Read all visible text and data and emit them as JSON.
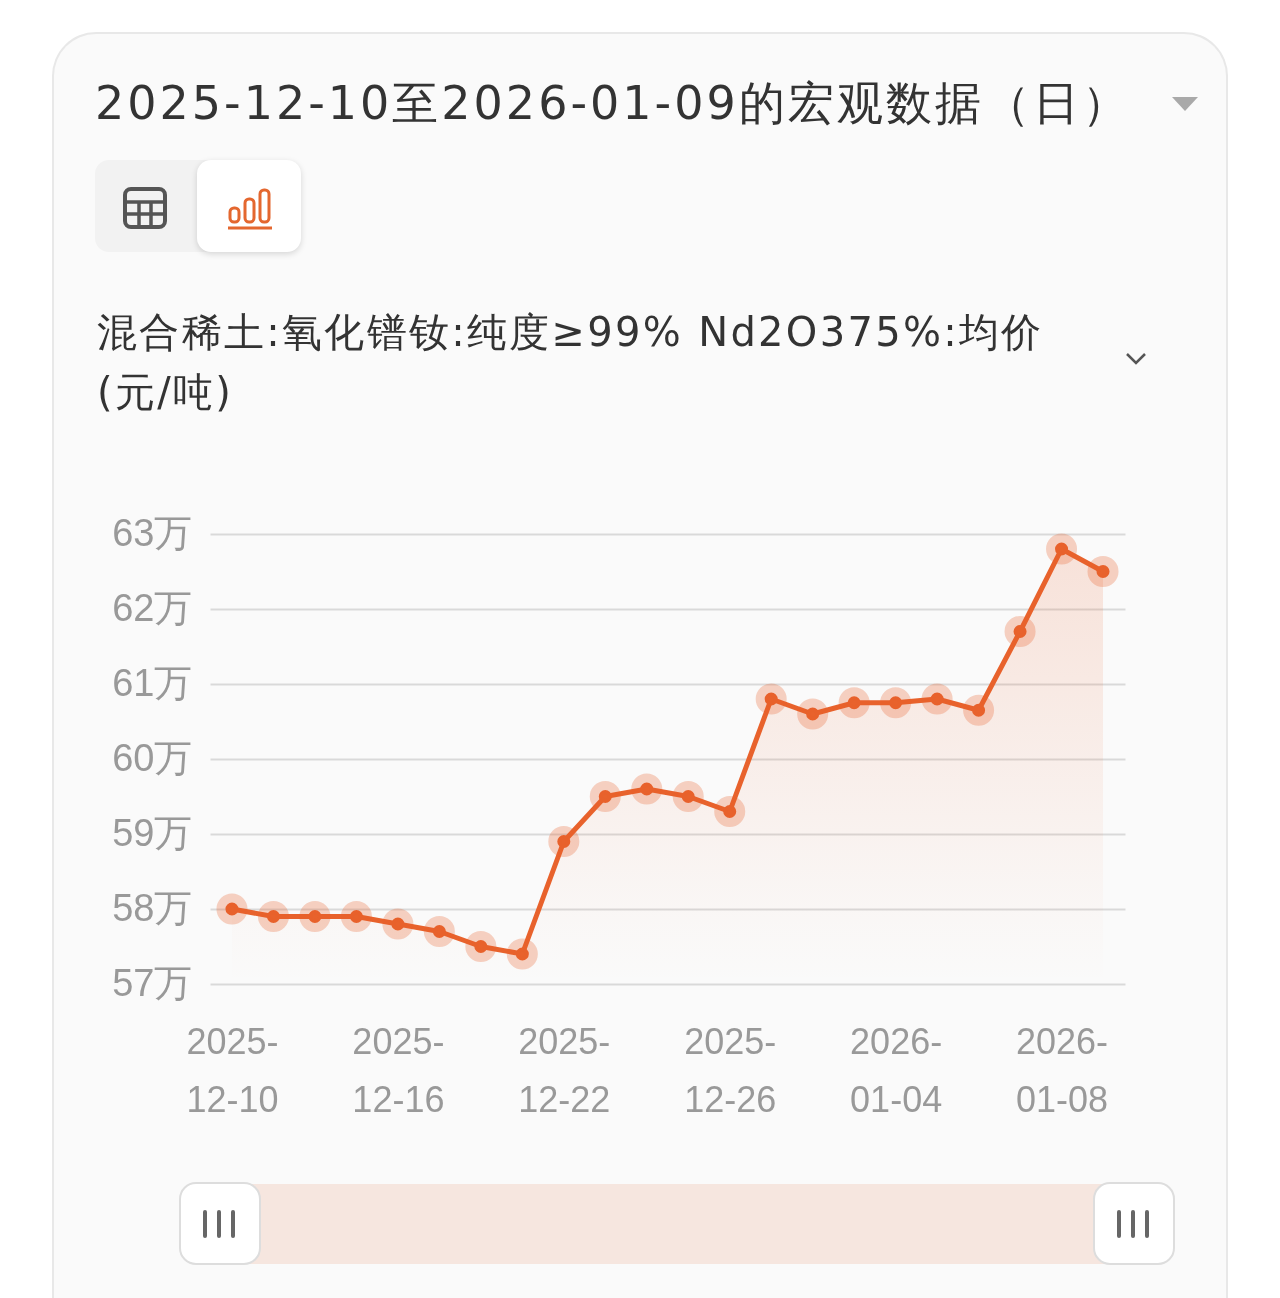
{
  "chart_data": {
    "type": "area",
    "title": "2025-12-10至2026-01-09的宏观数据（日）",
    "subtitle": "混合稀土:氧化镨钕:纯度≥99% Nd2O375%:均价(元/吨)",
    "categories": [
      "2025-12-10",
      null,
      null,
      null,
      "2025-12-16",
      null,
      null,
      null,
      "2025-12-22",
      null,
      null,
      null,
      "2025-12-26",
      null,
      null,
      null,
      "2026-01-04",
      null,
      null,
      null,
      "2026-01-08",
      null
    ],
    "values": [
      58,
      57.9,
      57.9,
      57.9,
      57.8,
      57.7,
      57.5,
      57.4,
      58.9,
      59.5,
      59.6,
      59.5,
      59.3,
      60.8,
      60.6,
      60.75,
      60.75,
      60.8,
      60.65,
      61.7,
      62.8,
      62.5
    ],
    "color": "#e8622c",
    "marker": "circle",
    "grid": "y",
    "ylim": [
      57,
      63
    ],
    "yticks": [
      {
        "value": 57,
        "label": "57万"
      },
      {
        "value": 58,
        "label": "58万"
      },
      {
        "value": 59,
        "label": "59万"
      },
      {
        "value": 60,
        "label": "60万"
      },
      {
        "value": 61,
        "label": "61万"
      },
      {
        "value": 62,
        "label": "62万"
      },
      {
        "value": 63,
        "label": "63万"
      }
    ]
  }
}
